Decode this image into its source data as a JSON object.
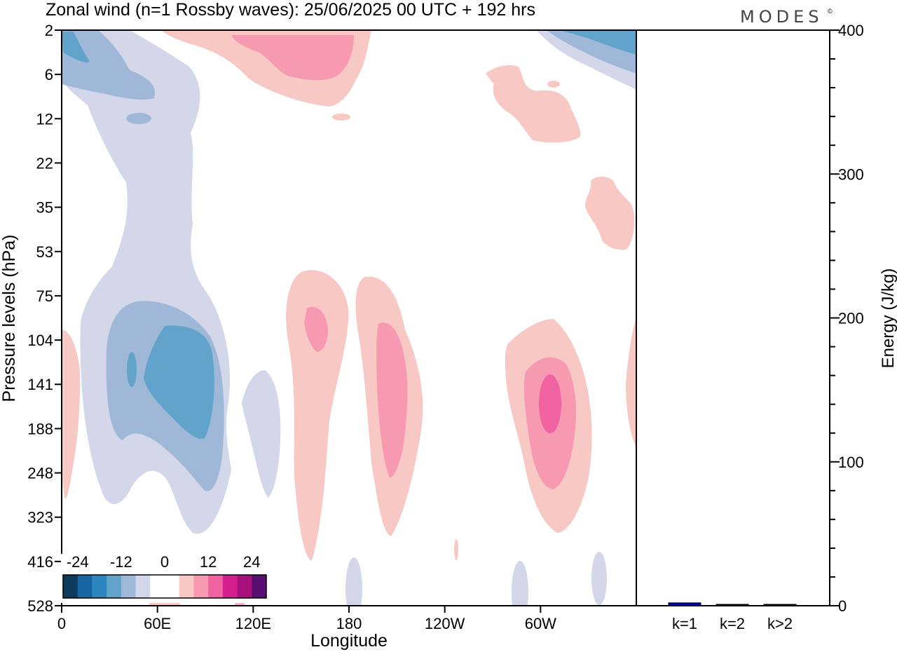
{
  "brand": "MODES",
  "brand_mark": "©",
  "chart_data": {
    "type": "heatmap",
    "title": "Zonal wind (n=1 Rossby waves):  25/06/2025  00 UTC  + 192 hrs",
    "main_panel": {
      "xlabel": "Longitude",
      "ylabel": "Pressure levels (hPa)",
      "x_ticks": [
        {
          "lon": 0,
          "label": "0"
        },
        {
          "lon": 60,
          "label": "60E"
        },
        {
          "lon": 120,
          "label": "120E"
        },
        {
          "lon": 180,
          "label": "180"
        },
        {
          "lon": 240,
          "label": "120W"
        },
        {
          "lon": 300,
          "label": "60W"
        }
      ],
      "xlim": [
        0,
        360
      ],
      "y_levels": [
        "2",
        "6",
        "12",
        "22",
        "35",
        "53",
        "75",
        "104",
        "141",
        "188",
        "248",
        "323",
        "416",
        "528"
      ],
      "y_scale": "one tick per model level (non-linear in pressure)",
      "colorbar": {
        "tick_labels": [
          "-24",
          "-12",
          "0",
          "12",
          "24"
        ],
        "tick_values": [
          -24,
          -12,
          0,
          12,
          24
        ],
        "levels": [
          -28,
          -24,
          -20,
          -16,
          -12,
          -8,
          -4,
          0,
          4,
          8,
          12,
          16,
          20,
          24,
          28
        ],
        "colors": [
          "#0d3b5c",
          "#1565a0",
          "#2b86c0",
          "#62a3cc",
          "#9fb8d8",
          "#d4d7e9",
          "#ffffff",
          "#ffffff",
          "#f8c8c4",
          "#f799b0",
          "#f062a0",
          "#d4208c",
          "#a8107e",
          "#580f70"
        ],
        "placement": "bottom-left inside plot"
      },
      "features": [
        {
          "sign": "negative",
          "lon_range": [
            0,
            85
          ],
          "levels": [
            "2",
            "53"
          ],
          "peak": -16,
          "note": "easterly anomaly in upper stratosphere near 0-60E"
        },
        {
          "sign": "negative",
          "lon_range": [
            20,
            105
          ],
          "levels": [
            "75",
            "323"
          ],
          "peak": -16,
          "note": "upper-tropospheric easterly anomaly centred near 60E-90E, 141 hPa"
        },
        {
          "sign": "negative",
          "lon_range": [
            333,
            360
          ],
          "levels": [
            "2",
            "6"
          ],
          "peak": -16
        },
        {
          "sign": "positive",
          "lon_range": [
            110,
            185
          ],
          "levels": [
            "2",
            "6"
          ],
          "peak": 8
        },
        {
          "sign": "positive",
          "lon_range": [
            145,
            180
          ],
          "levels": [
            "75",
            "416"
          ],
          "peak": 8,
          "note": "centre near 155E, 104 hPa"
        },
        {
          "sign": "positive",
          "lon_range": [
            180,
            228
          ],
          "levels": [
            "75",
            "323"
          ],
          "peak": 12,
          "note": "centre near 165W, 141-188 hPa"
        },
        {
          "sign": "positive",
          "lon_range": [
            278,
            335
          ],
          "levels": [
            "104",
            "323"
          ],
          "peak": 16,
          "note": "centre near 65W, 141 hPa"
        },
        {
          "sign": "positive",
          "lon_range": [
            265,
            325
          ],
          "levels": [
            "6",
            "12"
          ],
          "peak": 4
        },
        {
          "sign": "positive",
          "lon_range": [
            328,
            360
          ],
          "levels": [
            "22",
            "53"
          ],
          "peak": 4
        },
        {
          "sign": "positive",
          "lon_range": [
            0,
            12
          ],
          "levels": [
            "104",
            "248"
          ],
          "peak": 4
        },
        {
          "sign": "positive",
          "lon_range": [
            357,
            360
          ],
          "levels": [
            "104",
            "188"
          ],
          "peak": 4
        }
      ]
    },
    "energy_panel": {
      "type": "bar",
      "ylabel": "Energy (J/kg)",
      "ylim": [
        0,
        400
      ],
      "y_ticks": [
        0,
        100,
        200,
        300,
        400
      ],
      "categories": [
        "k=1",
        "k=2",
        "k>2"
      ],
      "values": [
        2,
        0.5,
        0.3
      ],
      "colors": [
        "#0000b0",
        "#000000",
        "#000000"
      ]
    }
  }
}
